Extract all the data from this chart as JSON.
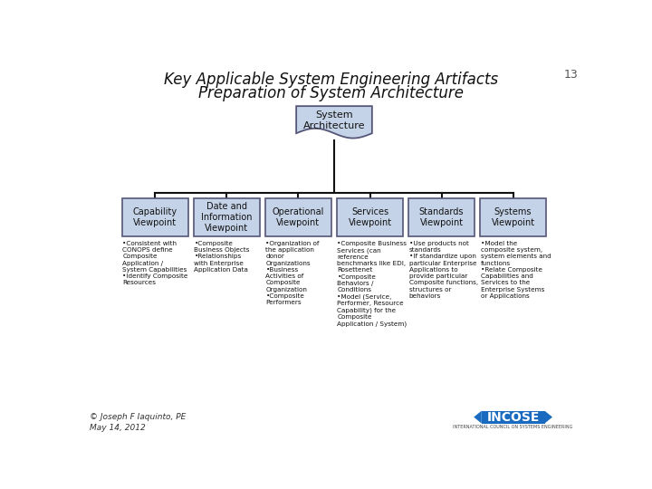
{
  "title_line1": "Key Applicable System Engineering Artifacts",
  "title_line2": "Preparation of System Architecture",
  "page_number": "13",
  "bg_color": "#ffffff",
  "box_fill": "#c5d3e8",
  "box_edge": "#555577",
  "root_label": "System\nArchitecture",
  "children": [
    {
      "label": "Capability\nViewpoint",
      "bullets": "•Consistent with\nCONOPS define\nComposite\nApplication /\nSystem Capabilities\n•Identify Composite\nResources"
    },
    {
      "label": "Date and\nInformation\nViewpoint",
      "bullets": "•Composite\nBusiness Objects\n•Relationships\nwith Enterprise\nApplication Data"
    },
    {
      "label": "Operational\nViewpoint",
      "bullets": "•Organization of\nthe application\ndonor\nOrganizations\n•Business\nActivities of\nComposite\nOrganization\n•Composite\nPerformers"
    },
    {
      "label": "Services\nViewpoint",
      "bullets": "•Composite Business\nServices (can\nreference\nbenchmarks like EDI,\nRosettenet\n•Composite\nBehaviors /\nConditions\n•Model (Service,\nPerformer, Resource\nCapability) for the\nComposite\nApplication / System)"
    },
    {
      "label": "Standards\nViewpoint",
      "bullets": "•Use products not\nstandards\n•If standardize upon\nparticular Enterprise\nApplications to\nprovide particular\nComposite functions,\nstructures or\nbehaviors"
    },
    {
      "label": "Systems\nViewpoint",
      "bullets": "•Model the\ncomposite system,\nsystem elements and\nfunctions\n•Relate Composite\nCapabilities and\nServices to the\nEnterprise Systems\nor Applications"
    }
  ],
  "footer_left": "© Joseph F Iaquinto, PE\nMay 14, 2012",
  "incose_color": "#1a6bbf",
  "incose_text_color": "#ffffff",
  "incose_sub": "INTERNATIONAL COUNCIL ON SYSTEMS ENGINEERING"
}
